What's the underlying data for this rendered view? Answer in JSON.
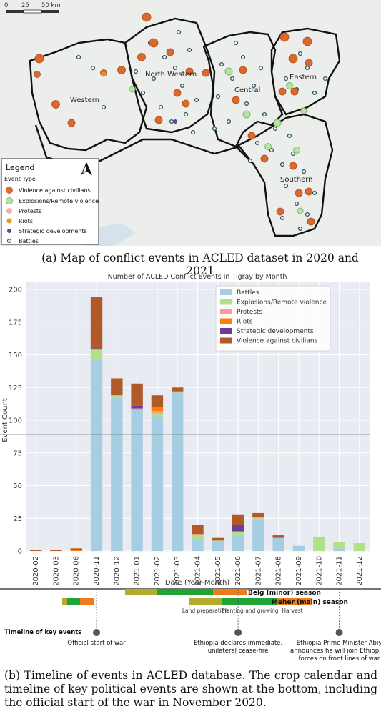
{
  "map": {
    "scale": {
      "ticks": [
        "0",
        "25",
        "50 km"
      ]
    },
    "regions": [
      {
        "name": "Western"
      },
      {
        "name": "North Western"
      },
      {
        "name": "Central"
      },
      {
        "name": "Eastern"
      },
      {
        "name": "Southern"
      }
    ],
    "legend": {
      "title": "Legend",
      "subtitle": "Event Type",
      "items": [
        {
          "label": "Violence against civilians",
          "color": "#d9692c",
          "icon": "large-circle"
        },
        {
          "label": "Explosions/Remote violence",
          "color": "#b8e3a3",
          "icon": "ring"
        },
        {
          "label": "Protests",
          "color": "#f5b0b0",
          "icon": "circle"
        },
        {
          "label": "Riots",
          "color": "#e8951e",
          "icon": "circle"
        },
        {
          "label": "Strategic developments",
          "color": "#6a3d9a",
          "icon": "small-circle"
        },
        {
          "label": "Battles",
          "color": "#a6cee3",
          "icon": "ring"
        }
      ],
      "north_arrow": "north-arrow-icon"
    },
    "caption": "(a) Map of conflict events in ACLED dataset in 2020 and 2021"
  },
  "chart_data": {
    "type": "bar",
    "stacked": true,
    "title": "Number of ACLED Conflict Events in Tigray by Month",
    "xlabel": "Date (Year-Month)",
    "ylabel": "Event Count",
    "ylim": [
      0,
      200
    ],
    "yticks": [
      0,
      25,
      50,
      75,
      100,
      125,
      150,
      175,
      200
    ],
    "grid": true,
    "legend_position": "top-right",
    "categories": [
      "2020-02",
      "2020-03",
      "2020-06",
      "2020-11",
      "2020-12",
      "2021-01",
      "2021-02",
      "2021-03",
      "2021-04",
      "2021-05",
      "2021-06",
      "2021-07",
      "2021-08",
      "2021-09",
      "2021-10",
      "2021-11",
      "2021-12"
    ],
    "series": [
      {
        "name": "Battles",
        "color": "#a6cee3",
        "values": [
          0,
          0,
          0,
          146,
          117,
          108,
          103,
          121,
          9,
          7,
          12,
          24,
          10,
          4,
          0,
          2,
          0
        ]
      },
      {
        "name": "Explosions/Remote violence",
        "color": "#b2df8a",
        "values": [
          0,
          0,
          0,
          8,
          2,
          0,
          2,
          1,
          3,
          1,
          3,
          1,
          0,
          0,
          11,
          5,
          6
        ]
      },
      {
        "name": "Protests",
        "color": "#fb9a99",
        "values": [
          0,
          0,
          0,
          0,
          0,
          1,
          2,
          0,
          1,
          0,
          0,
          1,
          0,
          0,
          0,
          0,
          0
        ]
      },
      {
        "name": "Riots",
        "color": "#ff7f00",
        "values": [
          0,
          0,
          1,
          0,
          0,
          0,
          3,
          0,
          0,
          0,
          0,
          0,
          0,
          0,
          0,
          0,
          0
        ]
      },
      {
        "name": "Strategic developments",
        "color": "#6a3d9a",
        "values": [
          0,
          0,
          0,
          1,
          0,
          2,
          0,
          0,
          0,
          0,
          5,
          0,
          0,
          0,
          0,
          0,
          0
        ]
      },
      {
        "name": "Violence against civilians",
        "color": "#b15928",
        "values": [
          1,
          1,
          1,
          39,
          13,
          17,
          9,
          3,
          7,
          2,
          8,
          3,
          2,
          0,
          0,
          0,
          0
        ]
      }
    ]
  },
  "timeline": {
    "belg_label": "Belg (minor) season",
    "meher_label": "Meher (main) season",
    "row_label": "Timeline of key events",
    "stages": [
      "Land preparation",
      "Planting and growing",
      "Harvest"
    ],
    "events": [
      {
        "lines": [
          "Official start of war"
        ],
        "month": "2020-11"
      },
      {
        "lines": [
          "Ethiopia declares immediate,",
          "unilateral cease-fire"
        ],
        "month": "2021-06"
      },
      {
        "lines": [
          "Ethiopia Prime Minister Abiy",
          "announces he will join Ethiopian",
          "forces on front lines of war"
        ],
        "month": "2021-11"
      }
    ],
    "colors": {
      "land": "#b5ab2a",
      "plant": "#1fa535",
      "harvest": "#ef7b1c"
    }
  },
  "caption": "(b) Timeline of events in ACLED database. The crop calendar and timeline of key political events are shown at the bottom, including the official start of the war in November 2020."
}
